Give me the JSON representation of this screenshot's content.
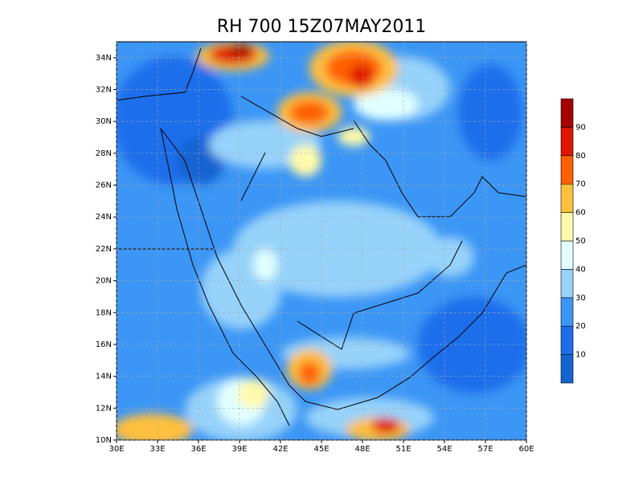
{
  "map": {
    "title": "RH 700 15Z07MAY2011",
    "xlim": [
      30,
      60
    ],
    "ylim": [
      10,
      35
    ],
    "xticks": [
      {
        "value": 30,
        "label": "30E"
      },
      {
        "value": 33,
        "label": "33E"
      },
      {
        "value": 36,
        "label": "36E"
      },
      {
        "value": 39,
        "label": "39E"
      },
      {
        "value": 42,
        "label": "42E"
      },
      {
        "value": 45,
        "label": "45E"
      },
      {
        "value": 48,
        "label": "48E"
      },
      {
        "value": 51,
        "label": "51E"
      },
      {
        "value": 54,
        "label": "54E"
      },
      {
        "value": 57,
        "label": "57E"
      },
      {
        "value": 60,
        "label": "60E"
      }
    ],
    "yticks": [
      {
        "value": 10,
        "label": "10N"
      },
      {
        "value": 12,
        "label": "12N"
      },
      {
        "value": 14,
        "label": "14N"
      },
      {
        "value": 16,
        "label": "16N"
      },
      {
        "value": 18,
        "label": "18N"
      },
      {
        "value": 20,
        "label": "20N"
      },
      {
        "value": 22,
        "label": "22N"
      },
      {
        "value": 24,
        "label": "24N"
      },
      {
        "value": 26,
        "label": "26N"
      },
      {
        "value": 28,
        "label": "28N"
      },
      {
        "value": 30,
        "label": "30N"
      },
      {
        "value": 32,
        "label": "32N"
      },
      {
        "value": 34,
        "label": "34N"
      }
    ],
    "grid": true,
    "colorbar": {
      "clim": [
        0,
        100
      ],
      "cticks": [
        10,
        20,
        30,
        40,
        50,
        60,
        70,
        80,
        90
      ],
      "colors": [
        "#1464d2",
        "#1e6eeb",
        "#3c96f5",
        "#96d2fa",
        "#e1ffff",
        "#fffaaa",
        "#ffc03c",
        "#ff6000",
        "#e11400",
        "#a50000"
      ]
    }
  }
}
